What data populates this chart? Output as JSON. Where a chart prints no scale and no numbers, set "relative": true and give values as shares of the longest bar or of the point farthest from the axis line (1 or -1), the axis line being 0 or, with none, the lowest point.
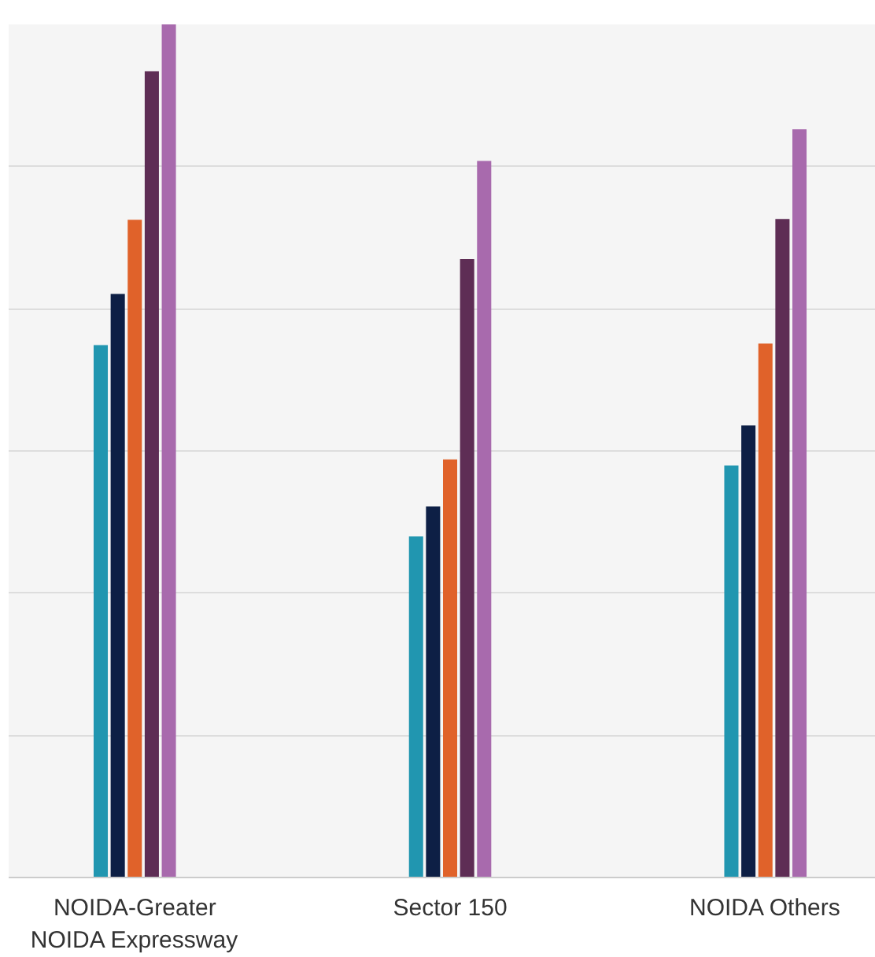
{
  "chart_data": {
    "type": "bar",
    "relative": true,
    "grid": "y",
    "categories": [
      "NOIDA-Greater NOIDA Expressway",
      "Sector 150",
      "NOIDA Others"
    ],
    "series": [
      {
        "color": "#2196b0",
        "values": [
          0.624,
          0.4,
          0.483
        ]
      },
      {
        "color": "#0d1f45",
        "values": [
          0.684,
          0.435,
          0.53
        ]
      },
      {
        "color": "#e0622a",
        "values": [
          0.771,
          0.49,
          0.626
        ]
      },
      {
        "color": "#5e2d55",
        "values": [
          0.945,
          0.725,
          0.772
        ]
      },
      {
        "color": "#a86aad",
        "values": [
          1,
          0.84,
          0.877
        ]
      }
    ]
  }
}
